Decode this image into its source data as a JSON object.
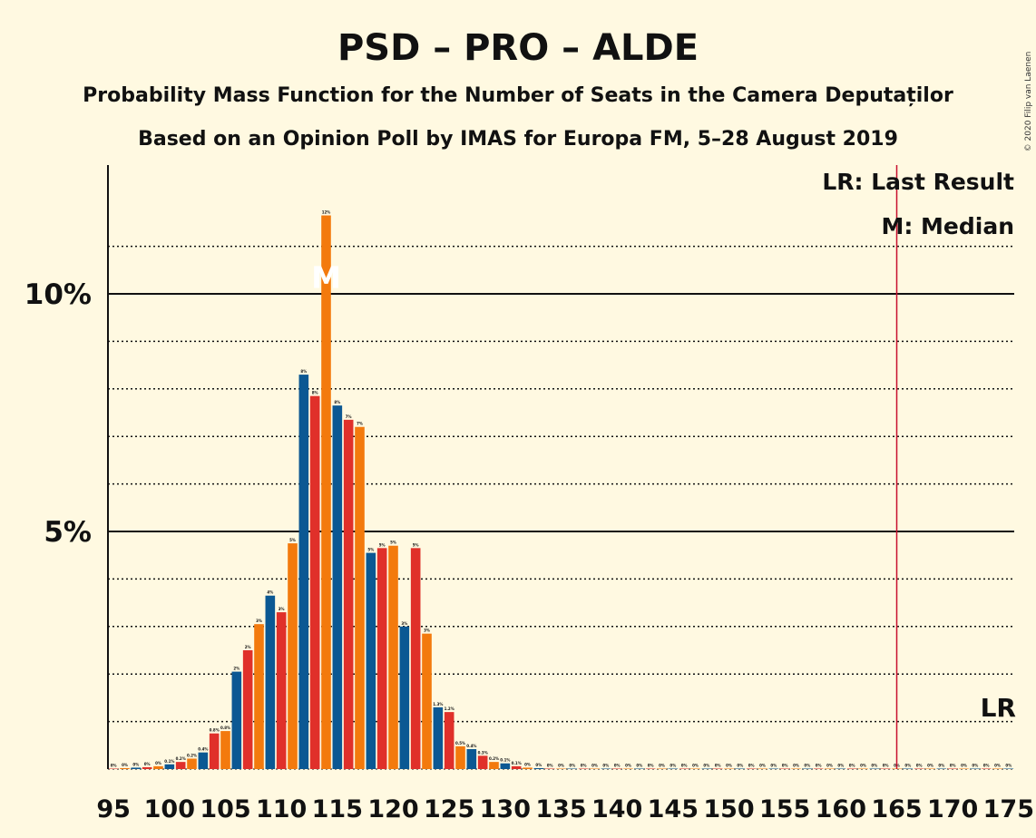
{
  "chart_data": {
    "type": "bar",
    "title": "PSD – PRO – ALDE",
    "subtitle_lines": [
      "Probability Mass Function for the Number of Seats in the Camera Deputaților",
      "Based on an Opinion Poll by IMAS for Europa FM, 5–28 August 2019"
    ],
    "copyright": "© 2020 Filip van Laenen",
    "x_start": 95,
    "x_end": 175,
    "xlim": [
      94.5,
      175.5
    ],
    "ylim": [
      0,
      12.7
    ],
    "y_ticks": [
      {
        "value": 5,
        "label": "5%"
      },
      {
        "value": 10,
        "label": "10%"
      }
    ],
    "y_minor_gridlines": [
      1,
      2,
      3,
      4,
      6,
      7,
      8,
      9,
      11
    ],
    "x_tick_labels": [
      "95",
      "100",
      "105",
      "110",
      "115",
      "120",
      "125",
      "130",
      "135",
      "140",
      "145",
      "150",
      "155",
      "160",
      "165",
      "170",
      "175"
    ],
    "x_tick_values": [
      95,
      100,
      105,
      110,
      115,
      120,
      125,
      130,
      135,
      140,
      145,
      150,
      155,
      160,
      165,
      170,
      175
    ],
    "values": [
      0.01,
      0.02,
      0.03,
      0.04,
      0.06,
      0.1,
      0.15,
      0.22,
      0.35,
      0.75,
      0.8,
      2.05,
      2.5,
      3.05,
      3.65,
      3.3,
      4.75,
      8.3,
      7.85,
      11.65,
      7.65,
      7.35,
      7.2,
      4.55,
      4.65,
      4.7,
      3.0,
      4.65,
      2.85,
      1.3,
      1.2,
      0.48,
      0.42,
      0.28,
      0.15,
      0.12,
      0.06,
      0.03,
      0.02,
      0.01,
      0.01,
      0.01,
      0.01,
      0.01,
      0.01,
      0.01,
      0.01,
      0.01,
      0.01,
      0.01,
      0.01,
      0.01,
      0.01,
      0.01,
      0.01,
      0.01,
      0.01,
      0.01,
      0.01,
      0.01,
      0.01,
      0.01,
      0.01,
      0.01,
      0.01,
      0.01,
      0.01,
      0.01,
      0.01,
      0.01,
      0.01,
      0.01,
      0.01,
      0.01,
      0.01,
      0.01,
      0.01,
      0.01,
      0.01,
      0.01,
      0.01
    ],
    "data_labels": [
      "0%",
      "0%",
      "0%",
      "0%",
      "0%",
      "0.1%",
      "0.2%",
      "0.2%",
      "0.4%",
      "0.8%",
      "0.8%",
      "2%",
      "2%",
      "3%",
      "4%",
      "3%",
      "5%",
      "8%",
      "8%",
      "12%",
      "8%",
      "7%",
      "7%",
      "5%",
      "5%",
      "5%",
      "3%",
      "5%",
      "3%",
      "1.3%",
      "1.2%",
      "0.5%",
      "0.4%",
      "0.3%",
      "0.2%",
      "0.1%",
      "0.1%",
      "0%",
      "0%",
      "0%",
      "0%",
      "0%",
      "0%",
      "0%",
      "0%",
      "0%",
      "0%",
      "0%",
      "0%",
      "0%",
      "0%",
      "0%",
      "0%",
      "0%",
      "0%",
      "0%",
      "0%",
      "0%",
      "0%",
      "0%",
      "0%",
      "0%",
      "0%",
      "0%",
      "0%",
      "0%",
      "0%",
      "0%",
      "0%",
      "0%",
      "0%",
      "0%",
      "0%",
      "0%",
      "0%",
      "0%",
      "0%",
      "0%",
      "0%",
      "0%",
      "0%"
    ],
    "colors": {
      "red": "#E0302A",
      "orange": "#F37A0D",
      "blue": "#0B5893"
    },
    "color_cycle": [
      "red",
      "orange",
      "blue"
    ],
    "median": {
      "seat": 114,
      "marker": "M"
    },
    "last_result": {
      "seat": 165,
      "marker": "LR",
      "color": "#C8102E"
    },
    "legend": {
      "position": "top-right",
      "lines": [
        "LR: Last Result",
        "M: Median"
      ]
    },
    "grid": true
  }
}
